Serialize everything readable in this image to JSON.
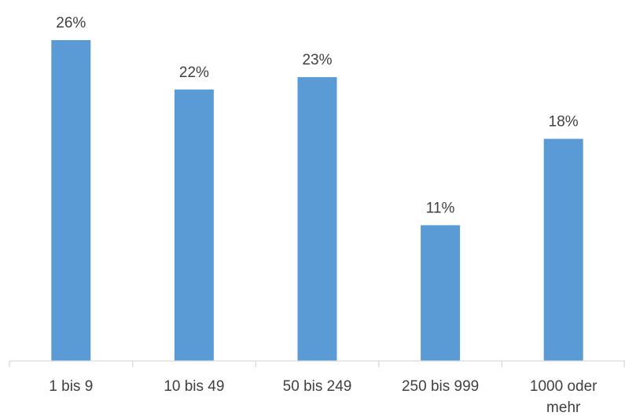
{
  "chart_data": {
    "type": "bar",
    "categories": [
      [
        "1 bis 9"
      ],
      [
        "10 bis 49"
      ],
      [
        "50 bis 249"
      ],
      [
        "250 bis 999"
      ],
      [
        "1000 oder",
        "mehr"
      ]
    ],
    "values": [
      26,
      22,
      23,
      11,
      18
    ],
    "value_labels": [
      "26%",
      "22%",
      "23%",
      "11%",
      "18%"
    ],
    "unit": "%",
    "ylim": [
      0,
      26
    ],
    "grid": false,
    "legend": "none",
    "title": "",
    "xlabel": "",
    "ylabel": "",
    "bar_color": "#5b9bd5",
    "axis_color": "#d9d9d9",
    "text_color": "#404040"
  }
}
